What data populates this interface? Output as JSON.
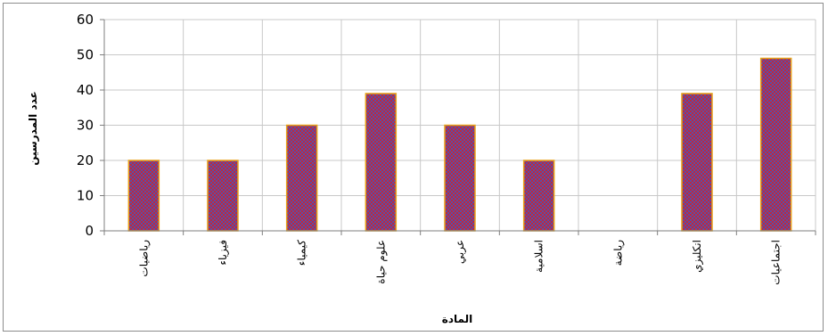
{
  "chart_data": {
    "type": "bar",
    "categories": [
      "رياضيات",
      "فيزياء",
      "كيمياء",
      "علوم حياة",
      "عربي",
      "اسلامية",
      "رياضة",
      "انكليزي",
      "اجتماعيات"
    ],
    "values": [
      20,
      20,
      30,
      39,
      30,
      20,
      0,
      39,
      49
    ],
    "xlabel": "المادة",
    "ylabel": "عدد المدرسين",
    "ylim": [
      0,
      60
    ],
    "yticks": [
      0,
      10,
      20,
      30,
      40,
      50,
      60
    ],
    "grid": true,
    "legend": "none",
    "colors": {
      "bar_fill": "#c0283c",
      "bar_pattern": "#5a4fa8",
      "bar_border": "#e8a21a",
      "grid": "#c8c8c8",
      "axis": "#7f7f7f"
    }
  }
}
